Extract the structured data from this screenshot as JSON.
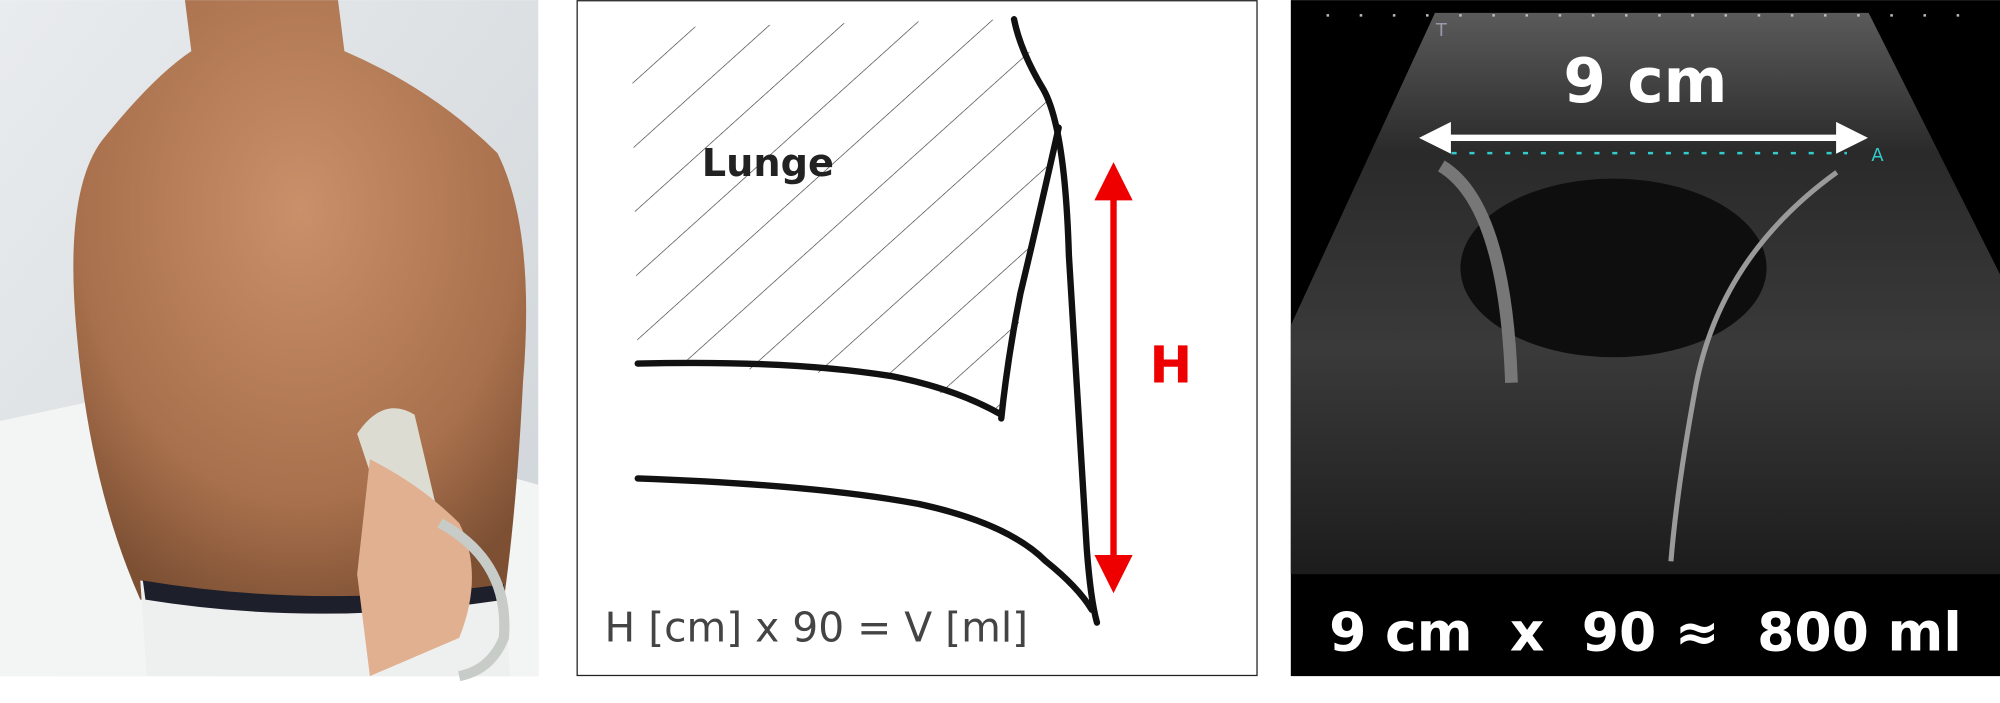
{
  "diagram": {
    "label": "Lunge",
    "height_label": "H",
    "formula": "H [cm] x 90 = V [ml]"
  },
  "ultrasound": {
    "marker_top": "T",
    "marker_caliper": "A",
    "width_label": "9 cm",
    "result": "9 cm  x  90 ≈  800 ml"
  }
}
